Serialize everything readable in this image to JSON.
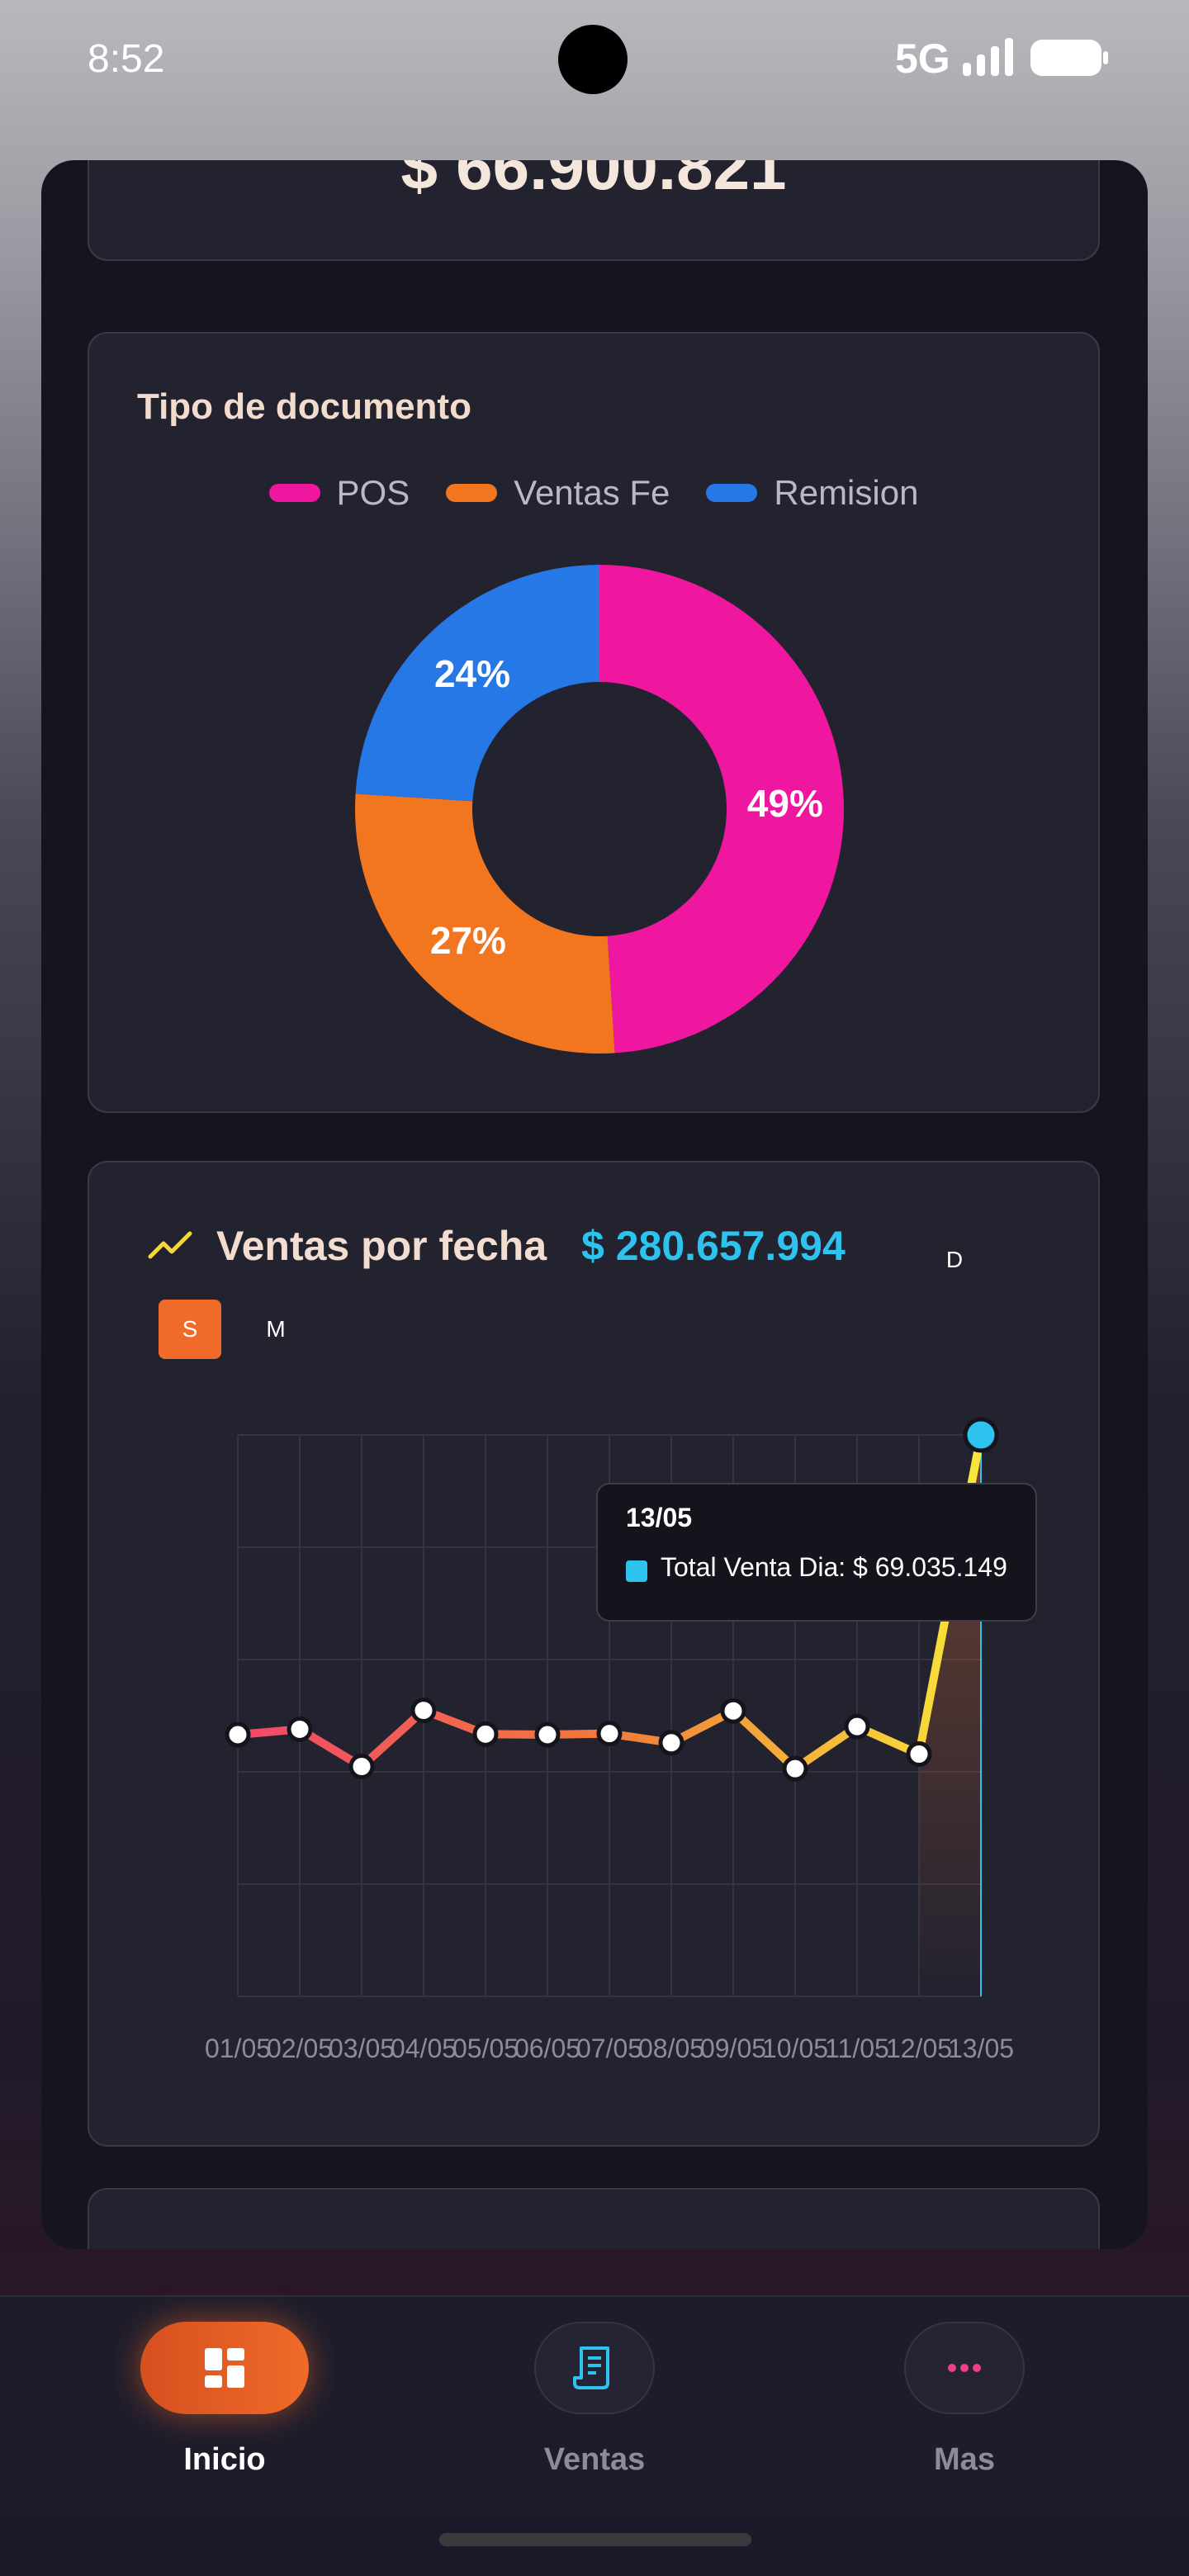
{
  "status_bar": {
    "time": "8:52",
    "network": "5G"
  },
  "total_card": {
    "amount": "$ 66.900.821"
  },
  "document_card": {
    "title": "Tipo de documento",
    "legend": [
      {
        "label": "POS",
        "color": "#ef17a0"
      },
      {
        "label": "Ventas Fe",
        "color": "#f27520"
      },
      {
        "label": "Remision",
        "color": "#2678e6"
      }
    ]
  },
  "sales_card": {
    "title": "Ventas por fecha",
    "total": "$ 280.657.994",
    "periods": {
      "day": "D",
      "week": "S",
      "month": "M",
      "selected": "S"
    },
    "tooltip": {
      "date": "13/05",
      "text": "Total Venta Dia: $ 69.035.149"
    }
  },
  "chart_data": [
    {
      "type": "pie",
      "categories": [
        "POS",
        "Ventas Fe",
        "Remision"
      ],
      "values": [
        49,
        27,
        24
      ],
      "labels": [
        "49%",
        "27%",
        "24%"
      ],
      "colors": [
        "#ef17a0",
        "#f27520",
        "#2678e6"
      ]
    },
    {
      "type": "line",
      "x": [
        "01/05",
        "02/05",
        "03/05",
        "04/05",
        "05/05",
        "06/05",
        "07/05",
        "08/05",
        "09/05",
        "10/05",
        "11/05",
        "12/05",
        "13/05"
      ],
      "series": [
        {
          "values": [
            13.5,
            14.5,
            7.6,
            18.0,
            13.6,
            13.5,
            13.7,
            12.0,
            17.9,
            7.2,
            15.0,
            9.9,
            69.035149
          ]
        }
      ],
      "ylim": [
        -35,
        69.035149
      ],
      "grid": true,
      "highlight_index": 12
    }
  ],
  "nav": {
    "items": [
      {
        "label": "Inicio",
        "icon": "dashboard-icon",
        "active": true
      },
      {
        "label": "Ventas",
        "icon": "receipt-icon",
        "active": false
      },
      {
        "label": "Mas",
        "icon": "more-icon",
        "active": false
      }
    ]
  }
}
